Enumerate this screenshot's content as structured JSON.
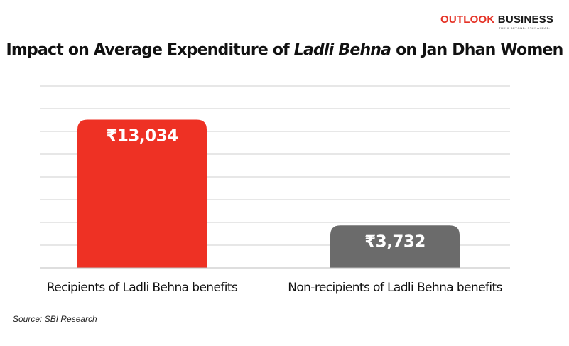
{
  "brand": {
    "logo_part1": "OUTLOOK",
    "logo_part2": "BUSINESS",
    "tagline": "THINK BEYOND. STAY AHEAD.",
    "accent_color": "#e53226"
  },
  "chart_data": {
    "type": "bar",
    "title_parts": [
      "Impact on Average Expenditure of ",
      "Ladli Behna",
      " on Jan Dhan Women"
    ],
    "categories": [
      "Recipients of Ladli Behna benefits",
      "Non-recipients of Ladli Behna benefits"
    ],
    "values": [
      13034,
      3732
    ],
    "value_labels": [
      "₹13,034",
      "₹3,732"
    ],
    "colors": [
      "#ee3124",
      "#6b6b6b"
    ],
    "ylim": [
      0,
      16000
    ],
    "gridlines": 8,
    "grid": true,
    "legend": "none",
    "xlabel": "",
    "ylabel": ""
  },
  "source": "Source: SBI Research"
}
